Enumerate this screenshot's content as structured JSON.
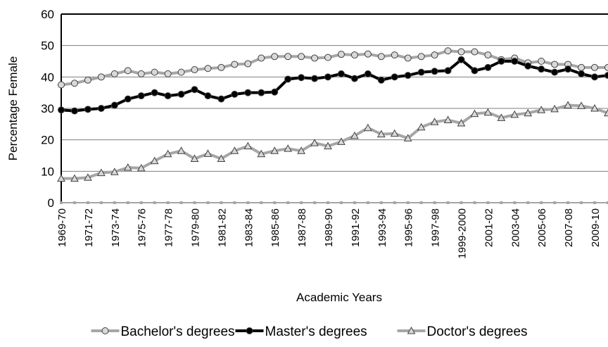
{
  "chart_data": {
    "type": "line",
    "y_label": "Percentage Female",
    "x_label": "Academic Years",
    "categories": [
      "1969-70",
      null,
      "1971-72",
      null,
      "1973-74",
      null,
      "1975-76",
      null,
      "1977-78",
      null,
      "1979-80",
      null,
      "1981-82",
      null,
      "1983-84",
      null,
      "1985-86",
      null,
      "1987-88",
      null,
      "1989-90",
      null,
      "1991-92",
      null,
      "1993-94",
      null,
      "1995-96",
      null,
      "1997-98",
      null,
      "1999-2000",
      null,
      "2001-02",
      null,
      "2003-04",
      null,
      "2005-06",
      null,
      "2007-08",
      null,
      "2009-10",
      null
    ],
    "series": [
      {
        "name": "Bachelor's degrees",
        "color": "#a6a6a6",
        "marker": "circle",
        "marker_fill": "#d9d9d9",
        "values": [
          37.5,
          38,
          39,
          40,
          41,
          42,
          41,
          41.5,
          41,
          41.5,
          42.3,
          42.7,
          43,
          44,
          44.2,
          46,
          46.5,
          46.5,
          46.5,
          46,
          46.2,
          47.2,
          47,
          47.3,
          46.5,
          47,
          46,
          46.5,
          47,
          48.3,
          48,
          48,
          47,
          45.5,
          46,
          44.5,
          45,
          44,
          44,
          43,
          43,
          43
        ]
      },
      {
        "name": "Master's degrees",
        "color": "#000000",
        "marker": "circle",
        "marker_fill": "#000000",
        "values": [
          29.5,
          29.2,
          29.7,
          30,
          31,
          33,
          34,
          35,
          34,
          34.5,
          36,
          34,
          33,
          34.5,
          35,
          35,
          35.2,
          39.3,
          39.8,
          39.5,
          40,
          41,
          39.5,
          41,
          39,
          40,
          40.5,
          41.5,
          41.8,
          42,
          45.5,
          42,
          43,
          45,
          45,
          43.5,
          42.5,
          41.5,
          42.5,
          41,
          40,
          40.5
        ]
      },
      {
        "name": "Doctor's degrees",
        "color": "#a6a6a6",
        "marker": "triangle",
        "marker_fill": "#d9d9d9",
        "values": [
          7.7,
          7.7,
          8,
          9.5,
          9.8,
          11.2,
          11,
          13.3,
          15.5,
          16.5,
          14,
          15.6,
          14,
          16.5,
          18,
          15.5,
          16.5,
          17.2,
          16.5,
          19,
          18,
          19.4,
          21.3,
          23.8,
          21.8,
          22,
          20.5,
          24,
          25.7,
          26.3,
          25.3,
          28.3,
          28.7,
          27,
          28,
          28.5,
          29.5,
          29.8,
          31,
          30.8,
          30,
          28.5
        ]
      }
    ],
    "ylim": [
      0,
      60
    ],
    "yticks": [
      0,
      10,
      20,
      30,
      40,
      50,
      60
    ],
    "grid": true,
    "legend": "bottom"
  }
}
